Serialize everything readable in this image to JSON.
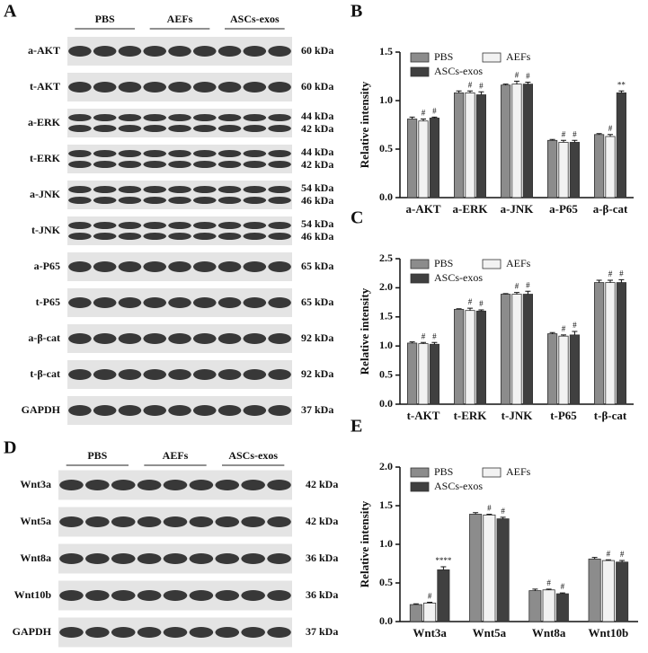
{
  "panel_a": {
    "letter": "A",
    "groups": [
      "PBS",
      "AEFs",
      "ASCs-exos"
    ],
    "rows": [
      {
        "label": "a-AKT",
        "kda": [
          "60 kDa"
        ]
      },
      {
        "label": "t-AKT",
        "kda": [
          "60 kDa"
        ]
      },
      {
        "label": "a-ERK",
        "kda": [
          "44 kDa",
          "42 kDa"
        ]
      },
      {
        "label": "t-ERK",
        "kda": [
          "44 kDa",
          "42 kDa"
        ]
      },
      {
        "label": "a-JNK",
        "kda": [
          "54 kDa",
          "46 kDa"
        ]
      },
      {
        "label": "t-JNK",
        "kda": [
          "54 kDa",
          "46 kDa"
        ]
      },
      {
        "label": "a-P65",
        "kda": [
          "65 kDa"
        ]
      },
      {
        "label": "t-P65",
        "kda": [
          "65 kDa"
        ]
      },
      {
        "label": "a-β-cat",
        "kda": [
          "92 kDa"
        ]
      },
      {
        "label": "t-β-cat",
        "kda": [
          "92 kDa"
        ]
      },
      {
        "label": "GAPDH",
        "kda": [
          "37 kDa"
        ]
      }
    ]
  },
  "panel_d": {
    "letter": "D",
    "groups": [
      "PBS",
      "AEFs",
      "ASCs-exos"
    ],
    "rows": [
      {
        "label": "Wnt3a",
        "kda": [
          "42 kDa"
        ]
      },
      {
        "label": "Wnt5a",
        "kda": [
          "42 kDa"
        ]
      },
      {
        "label": "Wnt8a",
        "kda": [
          "36 kDa"
        ]
      },
      {
        "label": "Wnt10b",
        "kda": [
          "36 kDa"
        ]
      },
      {
        "label": "GAPDH",
        "kda": [
          "37 kDa"
        ]
      }
    ]
  },
  "chart_data": [
    {
      "type": "bar",
      "panel": "B",
      "ylabel": "Relative intensity",
      "categories": [
        "a-AKT",
        "a-ERK",
        "a-JNK",
        "a-P65",
        "a-β-cat"
      ],
      "series": [
        {
          "name": "PBS",
          "color": "#8c8c8c",
          "values": [
            0.81,
            1.08,
            1.16,
            0.59,
            0.65
          ],
          "errors": [
            0.02,
            0.02,
            0.01,
            0.01,
            0.01
          ]
        },
        {
          "name": "AEFs",
          "color": "#f2f2f2",
          "values": [
            0.79,
            1.08,
            1.17,
            0.57,
            0.63
          ],
          "errors": [
            0.02,
            0.02,
            0.03,
            0.02,
            0.02
          ],
          "annotations": [
            "#",
            "#",
            "#",
            "#",
            "#"
          ]
        },
        {
          "name": "ASCs-exos",
          "color": "#404040",
          "values": [
            0.82,
            1.06,
            1.17,
            0.57,
            1.08
          ],
          "errors": [
            0.01,
            0.03,
            0.02,
            0.02,
            0.02
          ],
          "annotations": [
            "#",
            "#",
            "#",
            "#",
            "**"
          ]
        }
      ],
      "ylim": [
        0,
        1.5
      ],
      "yticks": [
        {
          "value": 0,
          "label": "0.0"
        },
        0.5,
        {
          "value": 1,
          "label": "1.0"
        },
        1.5
      ]
    },
    {
      "type": "bar",
      "panel": "C",
      "ylabel": "Relative intensity",
      "categories": [
        "t-AKT",
        "t-ERK",
        "t-JNK",
        "t-P65",
        "t-β-cat"
      ],
      "series": [
        {
          "name": "PBS",
          "color": "#8c8c8c",
          "values": [
            1.05,
            1.63,
            1.89,
            1.21,
            2.09
          ],
          "errors": [
            0.02,
            0.01,
            0.01,
            0.02,
            0.04
          ]
        },
        {
          "name": "AEFs",
          "color": "#f2f2f2",
          "values": [
            1.04,
            1.61,
            1.89,
            1.17,
            2.09
          ],
          "errors": [
            0.02,
            0.04,
            0.03,
            0.02,
            0.04
          ],
          "annotations": [
            "#",
            "#",
            "#",
            "#",
            "#"
          ]
        },
        {
          "name": "ASCs-exos",
          "color": "#404040",
          "values": [
            1.03,
            1.6,
            1.89,
            1.19,
            2.09
          ],
          "errors": [
            0.03,
            0.02,
            0.05,
            0.06,
            0.05
          ],
          "annotations": [
            "#",
            "#",
            "#",
            "#",
            "#"
          ]
        }
      ],
      "ylim": [
        0,
        2.5
      ],
      "yticks": [
        {
          "value": 0,
          "label": "0.0"
        },
        0.5,
        {
          "value": 1,
          "label": "1.0"
        },
        1.5,
        {
          "value": 2,
          "label": "2.0"
        },
        2.5
      ]
    },
    {
      "type": "bar",
      "panel": "E",
      "ylabel": "Relative intensity",
      "categories": [
        "Wnt3a",
        "Wnt5a",
        "Wnt8a",
        "Wnt10b"
      ],
      "series": [
        {
          "name": "PBS",
          "color": "#8c8c8c",
          "values": [
            0.22,
            1.39,
            0.4,
            0.81
          ],
          "errors": [
            0.01,
            0.02,
            0.02,
            0.02
          ]
        },
        {
          "name": "AEFs",
          "color": "#f2f2f2",
          "values": [
            0.24,
            1.38,
            0.41,
            0.79
          ],
          "errors": [
            0.01,
            0.01,
            0.01,
            0.01
          ],
          "annotations": [
            "#",
            "#",
            "#",
            "#"
          ]
        },
        {
          "name": "ASCs-exos",
          "color": "#404040",
          "values": [
            0.67,
            1.33,
            0.36,
            0.77
          ],
          "errors": [
            0.04,
            0.02,
            0.01,
            0.02
          ],
          "annotations": [
            "****",
            "#",
            "#",
            "#"
          ]
        }
      ],
      "ylim": [
        0,
        2.0
      ],
      "yticks": [
        {
          "value": 0,
          "label": "0.0"
        },
        0.5,
        {
          "value": 1,
          "label": "1.0"
        },
        1.5,
        {
          "value": 2,
          "label": "2.0"
        }
      ]
    }
  ]
}
